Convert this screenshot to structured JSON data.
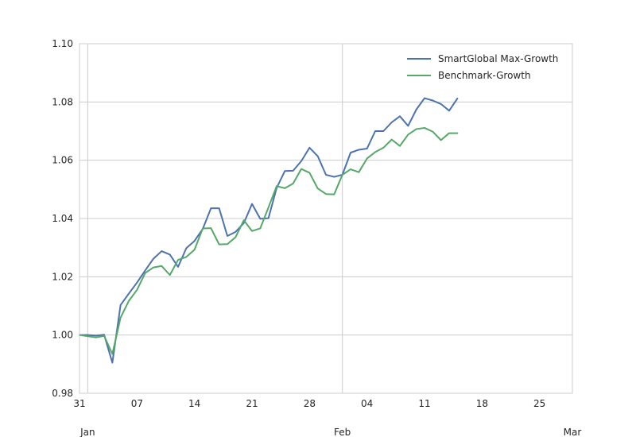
{
  "chart_data": {
    "type": "line",
    "title": "",
    "xlabel": "",
    "ylabel": "",
    "x_start": "2013-12-31",
    "x_step_days": 1,
    "xlim": [
      "2013-12-31",
      "2014-03-01"
    ],
    "ylim": [
      0.98,
      1.1
    ],
    "grid": true,
    "legend_position": "top-right",
    "y_ticks": [
      {
        "value": 0.98,
        "label": "0.98"
      },
      {
        "value": 1.0,
        "label": "1.00"
      },
      {
        "value": 1.02,
        "label": "1.02"
      },
      {
        "value": 1.04,
        "label": "1.04"
      },
      {
        "value": 1.06,
        "label": "1.06"
      },
      {
        "value": 1.08,
        "label": "1.08"
      },
      {
        "value": 1.1,
        "label": "1.10"
      }
    ],
    "x_minor_ticks": [
      {
        "date": "2013-12-31",
        "label": "31"
      },
      {
        "date": "2014-01-07",
        "label": "07"
      },
      {
        "date": "2014-01-14",
        "label": "14"
      },
      {
        "date": "2014-01-21",
        "label": "21"
      },
      {
        "date": "2014-01-28",
        "label": "28"
      },
      {
        "date": "2014-02-04",
        "label": "04"
      },
      {
        "date": "2014-02-11",
        "label": "11"
      },
      {
        "date": "2014-02-18",
        "label": "18"
      },
      {
        "date": "2014-02-25",
        "label": "25"
      }
    ],
    "x_major_ticks": [
      {
        "date": "2014-01-01",
        "label": "Jan"
      },
      {
        "date": "2014-02-01",
        "label": "Feb"
      },
      {
        "date": "2014-03-01",
        "label": "Mar"
      }
    ],
    "series": [
      {
        "name": "SmartGlobal Max-Growth",
        "color": "#4c72b0",
        "points": [
          [
            "2013-12-31",
            1.0
          ],
          [
            "2014-01-01",
            1.0
          ],
          [
            "2014-01-02",
            0.9998
          ],
          [
            "2014-01-03",
            1.0001
          ],
          [
            "2014-01-04",
            0.9905
          ],
          [
            "2014-01-05",
            1.0103
          ],
          [
            "2014-01-06",
            1.0142
          ],
          [
            "2014-01-07",
            1.018
          ],
          [
            "2014-01-08",
            1.0222
          ],
          [
            "2014-01-09",
            1.0262
          ],
          [
            "2014-01-10",
            1.0288
          ],
          [
            "2014-01-11",
            1.0276
          ],
          [
            "2014-01-12",
            1.0234
          ],
          [
            "2014-01-13",
            1.0298
          ],
          [
            "2014-01-14",
            1.0323
          ],
          [
            "2014-01-15",
            1.0364
          ],
          [
            "2014-01-16",
            1.0435
          ],
          [
            "2014-01-17",
            1.0435
          ],
          [
            "2014-01-18",
            1.034
          ],
          [
            "2014-01-19",
            1.0354
          ],
          [
            "2014-01-20",
            1.0384
          ],
          [
            "2014-01-21",
            1.045
          ],
          [
            "2014-01-22",
            1.0399
          ],
          [
            "2014-01-23",
            1.0401
          ],
          [
            "2014-01-24",
            1.0505
          ],
          [
            "2014-01-25",
            1.0563
          ],
          [
            "2014-01-26",
            1.0564
          ],
          [
            "2014-01-27",
            1.0597
          ],
          [
            "2014-01-28",
            1.0643
          ],
          [
            "2014-01-29",
            1.0614
          ],
          [
            "2014-01-30",
            1.055
          ],
          [
            "2014-01-31",
            1.0543
          ],
          [
            "2014-02-01",
            1.055
          ],
          [
            "2014-02-02",
            1.0626
          ],
          [
            "2014-02-03",
            1.0636
          ],
          [
            "2014-02-04",
            1.064
          ],
          [
            "2014-02-05",
            1.07
          ],
          [
            "2014-02-06",
            1.07
          ],
          [
            "2014-02-07",
            1.073
          ],
          [
            "2014-02-08",
            1.0751
          ],
          [
            "2014-02-09",
            1.0718
          ],
          [
            "2014-02-10",
            1.0774
          ],
          [
            "2014-02-11",
            1.0813
          ],
          [
            "2014-02-12",
            1.0805
          ],
          [
            "2014-02-13",
            1.0793
          ],
          [
            "2014-02-14",
            1.077
          ],
          [
            "2014-02-15",
            1.0812
          ]
        ]
      },
      {
        "name": "Benchmark-Growth",
        "color": "#55a868",
        "points": [
          [
            "2013-12-31",
            1.0
          ],
          [
            "2014-01-01",
            0.9996
          ],
          [
            "2014-01-02",
            0.9992
          ],
          [
            "2014-01-03",
            0.9997
          ],
          [
            "2014-01-04",
            0.9935
          ],
          [
            "2014-01-05",
            1.006
          ],
          [
            "2014-01-06",
            1.0117
          ],
          [
            "2014-01-07",
            1.0155
          ],
          [
            "2014-01-08",
            1.0213
          ],
          [
            "2014-01-09",
            1.0232
          ],
          [
            "2014-01-10",
            1.0237
          ],
          [
            "2014-01-11",
            1.0206
          ],
          [
            "2014-01-12",
            1.0258
          ],
          [
            "2014-01-13",
            1.0268
          ],
          [
            "2014-01-14",
            1.0293
          ],
          [
            "2014-01-15",
            1.0366
          ],
          [
            "2014-01-16",
            1.0367
          ],
          [
            "2014-01-17",
            1.0311
          ],
          [
            "2014-01-18",
            1.0312
          ],
          [
            "2014-01-19",
            1.0336
          ],
          [
            "2014-01-20",
            1.0394
          ],
          [
            "2014-01-21",
            1.0357
          ],
          [
            "2014-01-22",
            1.0366
          ],
          [
            "2014-01-23",
            1.0438
          ],
          [
            "2014-01-24",
            1.0511
          ],
          [
            "2014-01-25",
            1.0504
          ],
          [
            "2014-01-26",
            1.052
          ],
          [
            "2014-01-27",
            1.057
          ],
          [
            "2014-01-28",
            1.0557
          ],
          [
            "2014-01-29",
            1.0503
          ],
          [
            "2014-01-30",
            1.0484
          ],
          [
            "2014-01-31",
            1.0483
          ],
          [
            "2014-02-01",
            1.055
          ],
          [
            "2014-02-02",
            1.0569
          ],
          [
            "2014-02-03",
            1.0559
          ],
          [
            "2014-02-04",
            1.0606
          ],
          [
            "2014-02-05",
            1.0628
          ],
          [
            "2014-02-06",
            1.0643
          ],
          [
            "2014-02-07",
            1.0671
          ],
          [
            "2014-02-08",
            1.0649
          ],
          [
            "2014-02-09",
            1.0688
          ],
          [
            "2014-02-10",
            1.0707
          ],
          [
            "2014-02-11",
            1.0711
          ],
          [
            "2014-02-12",
            1.0698
          ],
          [
            "2014-02-13",
            1.0669
          ],
          [
            "2014-02-14",
            1.0693
          ],
          [
            "2014-02-15",
            1.0693
          ]
        ]
      }
    ]
  }
}
